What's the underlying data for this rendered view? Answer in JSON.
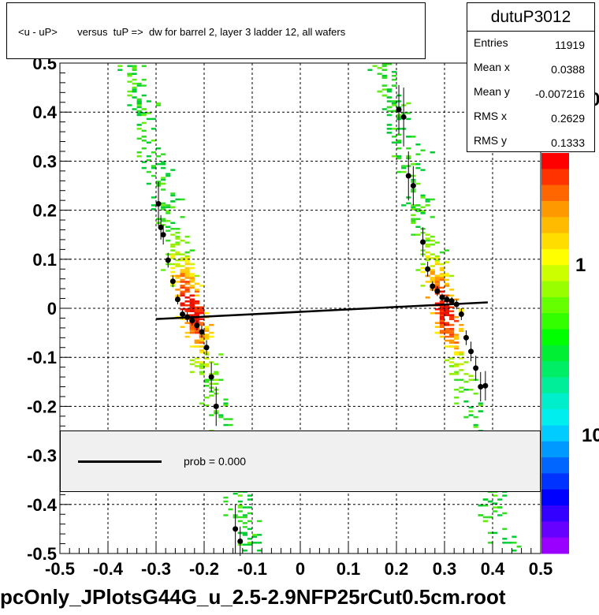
{
  "title": "<u - uP>       versus  tuP =>  dw for barrel 2, layer 3 ladder 12, all wafers",
  "footer": "pcOnly_JPlotsG44G_u_2.5-2.9NFP25rCut0.5cm.root",
  "stats": {
    "name": "dutuP3012",
    "rows": [
      {
        "label": "Entries",
        "value": "11919"
      },
      {
        "label": "Mean x",
        "value": "0.0388"
      },
      {
        "label": "Mean y",
        "value": "-0.007216"
      },
      {
        "label": "RMS x",
        "value": "0.2629"
      },
      {
        "label": "RMS y",
        "value": "0.1333"
      }
    ]
  },
  "legend": {
    "label": "prob = 0.000"
  },
  "colors": {
    "fit_line": "#000000",
    "marker": "#000000",
    "legend_fill": "#f0f0f0"
  },
  "chart_data": {
    "type": "scatter",
    "subtype": "2d-histogram with profile points and linear fit",
    "xlim": [
      -0.5,
      0.5
    ],
    "ylim": [
      -0.5,
      0.5
    ],
    "x_ticks": [
      "-0.5",
      "-0.4",
      "-0.3",
      "-0.2",
      "-0.1",
      "0",
      "0.1",
      "0.2",
      "0.3",
      "0.4",
      "0.5"
    ],
    "y_ticks": [
      "-0.5",
      "-0.4",
      "-0.3",
      "-0.2",
      "-0.1",
      "0",
      "0.1",
      "0.2",
      "0.3",
      "0.4",
      "0.5"
    ],
    "grid": true,
    "colorbar": {
      "scale": "log",
      "labels": [
        "10",
        "1",
        "0"
      ]
    },
    "profile_points": [
      {
        "x": -0.295,
        "y": 0.213,
        "err": 0.045
      },
      {
        "x": -0.29,
        "y": 0.165,
        "err": 0.025
      },
      {
        "x": -0.285,
        "y": 0.15,
        "err": 0.02
      },
      {
        "x": -0.275,
        "y": 0.098,
        "err": 0.015
      },
      {
        "x": -0.265,
        "y": 0.055,
        "err": 0.012
      },
      {
        "x": -0.255,
        "y": 0.018,
        "err": 0.01
      },
      {
        "x": -0.245,
        "y": -0.012,
        "err": 0.01
      },
      {
        "x": -0.235,
        "y": -0.018,
        "err": 0.01
      },
      {
        "x": -0.225,
        "y": -0.025,
        "err": 0.01
      },
      {
        "x": -0.215,
        "y": -0.035,
        "err": 0.01
      },
      {
        "x": -0.205,
        "y": -0.048,
        "err": 0.012
      },
      {
        "x": -0.195,
        "y": -0.08,
        "err": 0.015
      },
      {
        "x": -0.185,
        "y": -0.14,
        "err": 0.03
      },
      {
        "x": -0.175,
        "y": -0.2,
        "err": 0.04
      },
      {
        "x": -0.135,
        "y": -0.45,
        "err": 0.05
      },
      {
        "x": -0.125,
        "y": -0.475,
        "err": 0.03
      },
      {
        "x": 0.205,
        "y": 0.405,
        "err": 0.05
      },
      {
        "x": 0.215,
        "y": 0.39,
        "err": 0.06
      },
      {
        "x": 0.225,
        "y": 0.27,
        "err": 0.05
      },
      {
        "x": 0.235,
        "y": 0.25,
        "err": 0.04
      },
      {
        "x": 0.255,
        "y": 0.135,
        "err": 0.03
      },
      {
        "x": 0.265,
        "y": 0.08,
        "err": 0.015
      },
      {
        "x": 0.275,
        "y": 0.045,
        "err": 0.01
      },
      {
        "x": 0.285,
        "y": 0.035,
        "err": 0.01
      },
      {
        "x": 0.295,
        "y": 0.022,
        "err": 0.008
      },
      {
        "x": 0.305,
        "y": 0.018,
        "err": 0.008
      },
      {
        "x": 0.315,
        "y": 0.015,
        "err": 0.008
      },
      {
        "x": 0.325,
        "y": 0.008,
        "err": 0.01
      },
      {
        "x": 0.335,
        "y": -0.012,
        "err": 0.012
      },
      {
        "x": 0.345,
        "y": -0.06,
        "err": 0.015
      },
      {
        "x": 0.355,
        "y": -0.088,
        "err": 0.02
      },
      {
        "x": 0.365,
        "y": -0.122,
        "err": 0.025
      },
      {
        "x": 0.375,
        "y": -0.16,
        "err": 0.03
      },
      {
        "x": 0.385,
        "y": -0.158,
        "err": 0.03
      }
    ],
    "fit_line": {
      "x": [
        -0.3,
        0.39
      ],
      "y": [
        -0.022,
        0.012
      ]
    }
  }
}
